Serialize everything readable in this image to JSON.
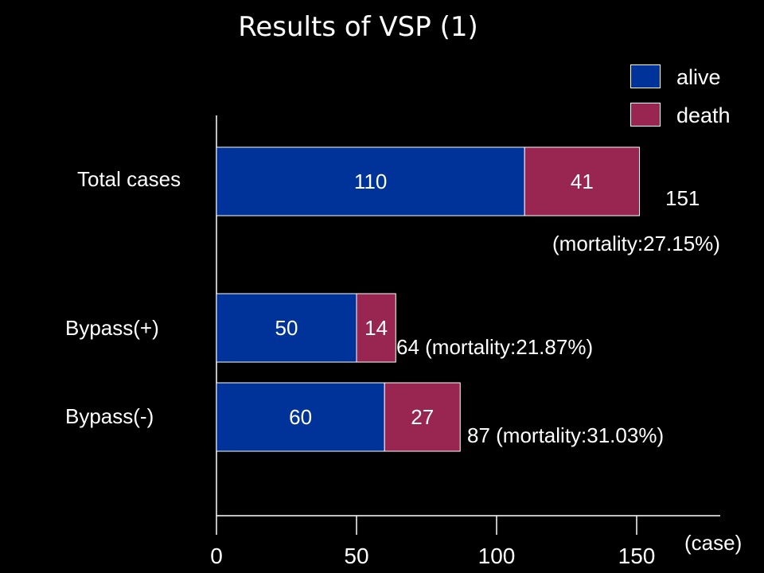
{
  "chart_data": {
    "type": "bar",
    "orientation": "horizontal",
    "stacked": true,
    "title": "Results of VSP (1)",
    "categories": [
      "Total cases",
      "Bypass(+)",
      "Bypass(-)"
    ],
    "series": [
      {
        "name": "alive",
        "color": "#003399",
        "values": [
          110,
          50,
          60
        ]
      },
      {
        "name": "death",
        "color": "#992651",
        "values": [
          41,
          14,
          27
        ]
      }
    ],
    "totals": [
      151,
      64,
      87
    ],
    "annotations": [
      "151",
      "(mortality:27.15%)",
      "64 (mortality:21.87%)",
      "87 (mortality:31.03%)"
    ],
    "xlabel": "(case)",
    "ylabel": "",
    "xlim": [
      0,
      180
    ],
    "xticks": [
      0,
      50,
      100,
      150
    ],
    "grid": false,
    "legend_position": "top-right"
  }
}
